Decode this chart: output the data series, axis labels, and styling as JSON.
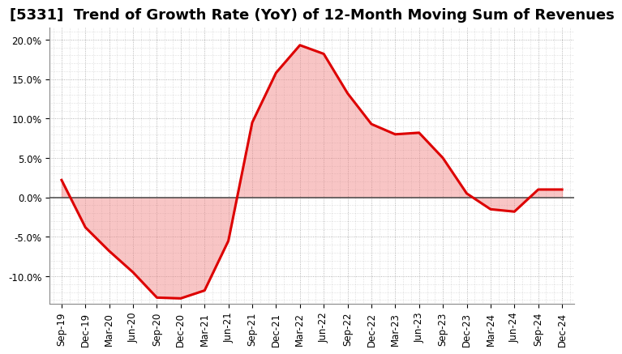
{
  "title": "[5331]  Trend of Growth Rate (YoY) of 12-Month Moving Sum of Revenues",
  "line_color": "#dd0000",
  "line_width": 2.2,
  "background_color": "#ffffff",
  "grid_color": "#999999",
  "zero_line_color": "#555555",
  "ylim": [
    -0.135,
    0.215
  ],
  "yticks": [
    -0.1,
    -0.05,
    0.0,
    0.05,
    0.1,
    0.15,
    0.2
  ],
  "values": [
    0.022,
    -0.038,
    -0.068,
    -0.095,
    -0.127,
    -0.128,
    -0.118,
    -0.055,
    0.095,
    0.158,
    0.193,
    0.182,
    0.132,
    0.093,
    0.08,
    0.082,
    0.05,
    0.005,
    -0.015,
    -0.018,
    0.01,
    0.01
  ],
  "xtick_labels": [
    "Sep-19",
    "Dec-19",
    "Mar-20",
    "Jun-20",
    "Sep-20",
    "Dec-20",
    "Mar-21",
    "Jun-21",
    "Sep-21",
    "Dec-21",
    "Mar-22",
    "Jun-22",
    "Sep-22",
    "Dec-22",
    "Mar-23",
    "Jun-23",
    "Sep-23",
    "Dec-23",
    "Mar-24",
    "Jun-24",
    "Sep-24",
    "Dec-24"
  ],
  "title_fontsize": 13,
  "tick_fontsize": 8.5,
  "fill_color": "#f08080",
  "fill_alpha": 0.45
}
